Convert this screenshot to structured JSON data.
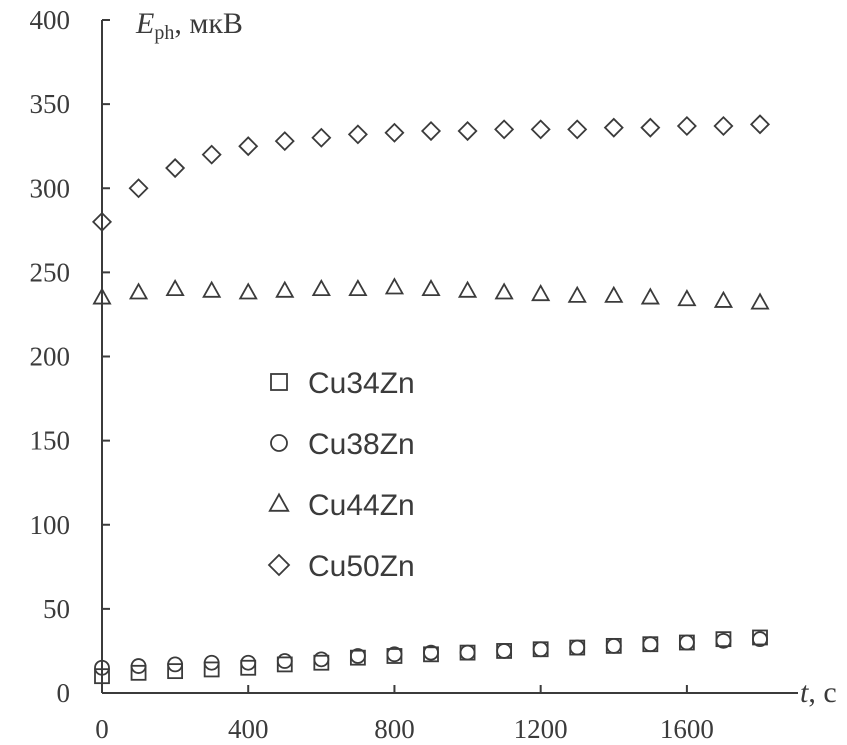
{
  "chart_data": {
    "type": "scatter",
    "title": "",
    "ylabel": {
      "symbol": "E",
      "subscript": "ph",
      "unit": ", мкВ"
    },
    "xlabel": {
      "symbol": "t",
      "unit": ", с"
    },
    "xlim": [
      0,
      1800
    ],
    "ylim": [
      0,
      400
    ],
    "x_ticks": [
      0,
      400,
      800,
      1200,
      1600
    ],
    "y_ticks": [
      0,
      50,
      100,
      150,
      200,
      250,
      300,
      350,
      400
    ],
    "x_tick_labels": [
      "0",
      "400",
      "800",
      "1200",
      "1600"
    ],
    "y_tick_labels": [
      "0",
      "50",
      "100",
      "150",
      "200",
      "250",
      "300",
      "350",
      "400"
    ],
    "grid": false,
    "legend_position": "center-left",
    "marker_color": "#3b3b3b",
    "series": [
      {
        "name": "Cu34Zn",
        "marker": "square",
        "x": [
          0,
          100,
          200,
          300,
          400,
          500,
          600,
          700,
          800,
          900,
          1000,
          1100,
          1200,
          1300,
          1400,
          1500,
          1600,
          1700,
          1800
        ],
        "y": [
          10,
          12,
          13,
          14,
          15,
          17,
          18,
          21,
          22,
          23,
          24,
          25,
          26,
          27,
          28,
          29,
          30,
          32,
          33
        ]
      },
      {
        "name": "Cu38Zn",
        "marker": "circle",
        "x": [
          0,
          100,
          200,
          300,
          400,
          500,
          600,
          700,
          800,
          900,
          1000,
          1100,
          1200,
          1300,
          1400,
          1500,
          1600,
          1700,
          1800
        ],
        "y": [
          15,
          16,
          17,
          18,
          18,
          19,
          20,
          22,
          23,
          24,
          24,
          25,
          26,
          27,
          28,
          29,
          30,
          31,
          32
        ]
      },
      {
        "name": "Cu44Zn",
        "marker": "triangle",
        "x": [
          0,
          100,
          200,
          300,
          400,
          500,
          600,
          700,
          800,
          900,
          1000,
          1100,
          1200,
          1300,
          1400,
          1500,
          1600,
          1700,
          1800
        ],
        "y": [
          235,
          238,
          240,
          239,
          238,
          239,
          240,
          240,
          241,
          240,
          239,
          238,
          237,
          236,
          236,
          235,
          234,
          233,
          232
        ]
      },
      {
        "name": "Cu50Zn",
        "marker": "diamond",
        "x": [
          0,
          100,
          200,
          300,
          400,
          500,
          600,
          700,
          800,
          900,
          1000,
          1100,
          1200,
          1300,
          1400,
          1500,
          1600,
          1700,
          1800
        ],
        "y": [
          280,
          300,
          312,
          320,
          325,
          328,
          330,
          332,
          333,
          334,
          334,
          335,
          335,
          335,
          336,
          336,
          337,
          337,
          338
        ]
      }
    ]
  }
}
